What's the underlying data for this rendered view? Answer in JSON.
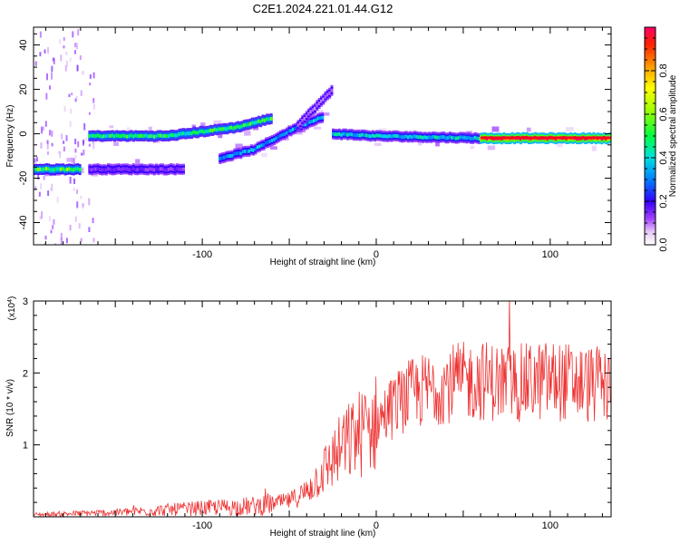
{
  "title": "C2E1.2024.221.01.44.G12",
  "colors": {
    "snr_line": "#ee3333",
    "background": "#ffffff",
    "frame": "#000000"
  },
  "chart_data": [
    {
      "type": "heatmap",
      "name": "spectrogram",
      "xlabel": "Height of straight line (km)",
      "ylabel": "Frequency (Hz)",
      "xlim": [
        -197,
        135
      ],
      "ylim": [
        -50,
        48
      ],
      "x_ticks": [
        -100,
        0,
        100
      ],
      "y_ticks": [
        -40,
        -20,
        0,
        20,
        40
      ],
      "colorbar": {
        "label": "Normalized spectral amplitude",
        "range": [
          0,
          1
        ],
        "ticks": [
          "0.0",
          "0.2",
          "0.4",
          "0.6",
          "0.8"
        ],
        "colormap": "rainbow"
      },
      "tracks": [
        {
          "x": [
            -165,
            -120,
            -80,
            -60
          ],
          "y": [
            -1,
            -1,
            3,
            7
          ],
          "amplitude": 0.5
        },
        {
          "x": [
            -197,
            -170
          ],
          "y": [
            -16,
            -16
          ],
          "amplitude": 0.55
        },
        {
          "x": [
            -165,
            -110
          ],
          "y": [
            -16,
            -16
          ],
          "amplitude": 0.15
        },
        {
          "x": [
            -90,
            -70,
            -48,
            -30
          ],
          "y": [
            -11,
            -7,
            2,
            8
          ],
          "amplitude": 0.35
        },
        {
          "x": [
            -45,
            -25
          ],
          "y": [
            4,
            20
          ],
          "amplitude": 0.1
        },
        {
          "x": [
            -25,
            0,
            60
          ],
          "y": [
            0,
            -1,
            -2
          ],
          "amplitude": 0.4
        },
        {
          "x": [
            60,
            135
          ],
          "y": [
            -2,
            -2
          ],
          "amplitude": 1.0
        }
      ]
    },
    {
      "type": "line",
      "name": "snr",
      "xlabel": "Height of straight line (km)",
      "ylabel": "SNR (10 * v/v)",
      "y_multiplier_label": "(x10",
      "y_multiplier_exp": "4",
      "xlim": [
        -197,
        135
      ],
      "ylim": [
        0,
        3
      ],
      "x_ticks": [
        -100,
        0,
        100
      ],
      "y_ticks": [
        1,
        2,
        3
      ],
      "envelope": {
        "x": [
          -197,
          -150,
          -100,
          -70,
          -50,
          -40,
          -30,
          -20,
          -10,
          0,
          10,
          20,
          40,
          60,
          80,
          100,
          120,
          135
        ],
        "y": [
          0.03,
          0.06,
          0.12,
          0.15,
          0.22,
          0.35,
          0.65,
          0.95,
          1.15,
          1.3,
          1.55,
          1.7,
          1.85,
          1.9,
          1.85,
          1.9,
          1.85,
          1.8
        ]
      }
    }
  ]
}
